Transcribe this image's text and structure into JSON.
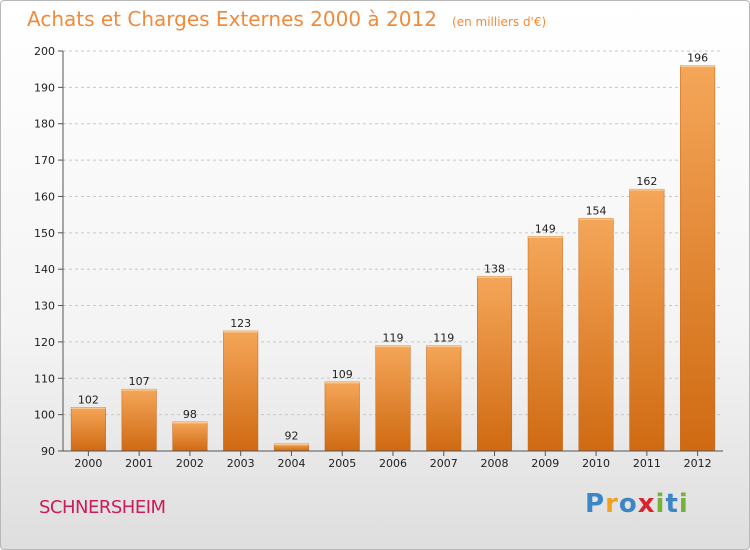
{
  "chart_data": {
    "type": "bar",
    "title": "Achats et Charges Externes 2000 à 2012",
    "unit_label": "(en milliers d'€)",
    "categories": [
      "2000",
      "2001",
      "2002",
      "2003",
      "2004",
      "2005",
      "2006",
      "2007",
      "2008",
      "2009",
      "2010",
      "2011",
      "2012"
    ],
    "values": [
      102,
      107,
      98,
      123,
      92,
      109,
      119,
      119,
      138,
      149,
      154,
      162,
      196
    ],
    "ylim": [
      90,
      200
    ],
    "yticks": [
      90,
      100,
      110,
      120,
      130,
      140,
      150,
      160,
      170,
      180,
      190,
      200
    ],
    "grid": true,
    "legend": "none",
    "colors": {
      "bar_light": "#f5a659",
      "bar_dark": "#cf6a12",
      "title": "#f08a3c",
      "grid": "#c8c8c8",
      "axis_text": "#222222"
    }
  },
  "commune": "SCHNERSHEIM",
  "logo": {
    "text": "Proxiti",
    "letters": [
      {
        "char": "P",
        "color": "#3d86c6"
      },
      {
        "char": "r",
        "color": "#f0a21e"
      },
      {
        "char": "o",
        "color": "#3d86c6"
      },
      {
        "char": "x",
        "color": "#d9262e"
      },
      {
        "char": "i",
        "color": "#74b23a"
      },
      {
        "char": "t",
        "color": "#3d86c6"
      },
      {
        "char": "i",
        "color": "#74b23a"
      }
    ]
  }
}
